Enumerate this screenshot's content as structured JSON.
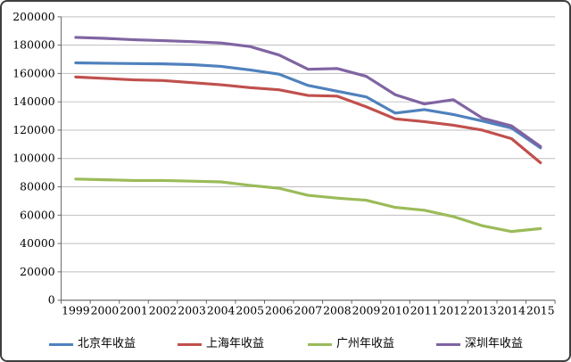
{
  "chart_data": {
    "type": "line",
    "title": "",
    "xlabel": "",
    "ylabel": "",
    "x_labels": [
      "1999",
      "2000",
      "2001",
      "2002",
      "2003",
      "2004",
      "2005",
      "2006",
      "2007",
      "2008",
      "2009",
      "2010",
      "2011",
      "2012",
      "2013",
      "2014",
      "2015"
    ],
    "y_ticks": [
      0,
      20000,
      40000,
      60000,
      80000,
      100000,
      120000,
      140000,
      160000,
      180000,
      200000
    ],
    "ylim": [
      0,
      200000
    ],
    "grid": true,
    "legend_position": "bottom",
    "series": [
      {
        "key": "beijing",
        "name": "北京年收益",
        "color": "#4F81BD",
        "values": [
          167500,
          167200,
          167000,
          166800,
          166200,
          165000,
          162500,
          159500,
          151500,
          147500,
          143500,
          132000,
          134500,
          131000,
          126500,
          121500,
          107500
        ]
      },
      {
        "key": "shanghai",
        "name": "上海年收益",
        "color": "#C0504D",
        "values": [
          157500,
          156500,
          155500,
          155000,
          153500,
          152000,
          150000,
          148500,
          144500,
          144000,
          136500,
          128000,
          126000,
          123500,
          120000,
          114000,
          97000
        ]
      },
      {
        "key": "guangzhou",
        "name": "广州年收益",
        "color": "#9BBB59",
        "values": [
          85500,
          85000,
          84500,
          84500,
          84000,
          83500,
          81000,
          79000,
          74000,
          72000,
          70500,
          65500,
          63500,
          59000,
          52500,
          48500,
          50500
        ]
      },
      {
        "key": "shenzhen",
        "name": "深圳年收益",
        "color": "#8064A2",
        "values": [
          185500,
          184800,
          183800,
          183200,
          182500,
          181500,
          179000,
          173000,
          163000,
          163500,
          158000,
          145000,
          138500,
          141500,
          128500,
          123000,
          108500
        ]
      }
    ]
  },
  "colors": {
    "background": "#FFFFFF",
    "border": "#3F3F3F",
    "gridline": "#BFBFBF",
    "axis": "#666666",
    "tick_text": "#000000"
  }
}
